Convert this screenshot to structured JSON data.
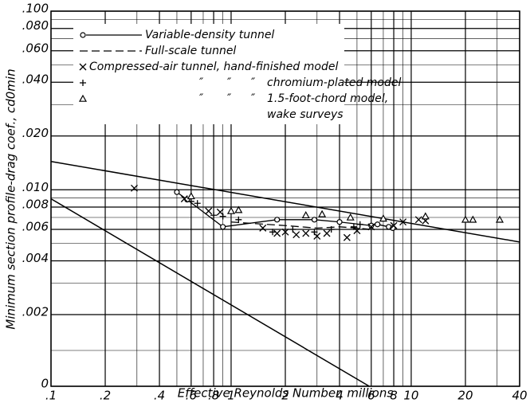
{
  "chart_data": {
    "type": "scatter",
    "x_label": "Effective Reynolds Number, millions",
    "y_label": "Minimum section profile-drag coef., cd0min",
    "xscale": "log",
    "xlim": [
      0.1,
      40
    ],
    "xticks": [
      {
        "value": 0.1,
        "label": ".1"
      },
      {
        "value": 0.2,
        "label": ".2"
      },
      {
        "value": 0.4,
        "label": ".4"
      },
      {
        "value": 0.6,
        "label": ".6"
      },
      {
        "value": 0.8,
        "label": ".8"
      },
      1,
      2,
      4,
      6,
      8,
      10,
      20,
      40
    ],
    "xminor": [
      0.3,
      0.5,
      0.7,
      0.9,
      3,
      5,
      7,
      9,
      30
    ],
    "ylim": [
      0,
      0.1
    ],
    "yticks": [
      0,
      {
        "value": 0.002,
        "label": ".002"
      },
      {
        "value": 0.004,
        "label": ".004"
      },
      {
        "value": 0.006,
        "label": ".006"
      },
      {
        "value": 0.008,
        "label": ".008"
      },
      {
        "value": 0.01,
        "label": ".010"
      },
      {
        "value": 0.02,
        "label": ".020"
      },
      {
        "value": 0.04,
        "label": ".040"
      },
      {
        "value": 0.06,
        "label": ".060"
      },
      {
        "value": 0.08,
        "label": ".080"
      },
      {
        "value": 0.1,
        "label": ".100"
      }
    ],
    "yminor": [
      0.001,
      0.003,
      0.005,
      0.007,
      0.009,
      0.03,
      0.05,
      0.07,
      0.09
    ],
    "grid": true,
    "ditto": "″",
    "series": [
      {
        "name": "Variable-density tunnel",
        "marker": "circle",
        "line": "solid",
        "color": "#000",
        "x": [
          0.5,
          0.57,
          0.9,
          1.8,
          2.9,
          4,
          6,
          6.5,
          7.5,
          7.9
        ],
        "values": [
          0.0097,
          0.0088,
          0.0062,
          0.0068,
          0.0068,
          0.0066,
          0.0063,
          0.0064,
          0.0062,
          0.0061
        ]
      },
      {
        "name": "Full-scale tunnel",
        "marker": "none",
        "line": "dashed",
        "color": "#000",
        "x": [
          1,
          2,
          3,
          4,
          5,
          6
        ],
        "values": [
          0.0066,
          0.0063,
          0.0061,
          0.0062,
          0.0061,
          0.006
        ]
      },
      {
        "name": "Compressed-air tunnel, hand-finished model",
        "marker": "x",
        "line": "none",
        "color": "#000",
        "x": [
          0.29,
          0.55,
          0.75,
          0.87,
          1.5,
          1.8,
          2,
          2.3,
          2.6,
          3,
          3.4,
          4.4,
          5,
          6,
          8,
          9,
          11,
          12
        ],
        "values": [
          0.0102,
          0.0089,
          0.0076,
          0.0075,
          0.0061,
          0.0057,
          0.0058,
          0.0056,
          0.0057,
          0.0055,
          0.0057,
          0.0054,
          0.0059,
          0.0062,
          0.0063,
          0.0066,
          0.0068,
          0.0067
        ]
      },
      {
        "name": "chromium-plated model",
        "marker": "plus",
        "line": "none",
        "color": "#000",
        "x": [
          0.6,
          0.65,
          0.8,
          0.9,
          1.1,
          1.7,
          2.2,
          2.9,
          3.6,
          4.8,
          5.2
        ],
        "values": [
          0.0086,
          0.0084,
          0.0072,
          0.0071,
          0.0068,
          0.0058,
          0.006,
          0.0058,
          0.006,
          0.0062,
          0.0064
        ]
      },
      {
        "name": "1.5-foot-chord model,",
        "marker": "triangle",
        "line": "none",
        "color": "#000",
        "x": [
          0.6,
          1.0,
          1.1,
          2.6,
          3.2,
          4.6,
          7,
          12,
          20,
          22,
          31
        ],
        "values": [
          0.0092,
          0.0076,
          0.0077,
          0.0072,
          0.0073,
          0.007,
          0.0069,
          0.0071,
          0.0068,
          0.0068,
          0.0068
        ]
      },
      {
        "name": "wake surveys",
        "marker": "none",
        "line": "none",
        "color": "#000",
        "x": [],
        "values": []
      }
    ],
    "reference_lines": [
      {
        "x": [
          0.1,
          40
        ],
        "values": [
          0.0144,
          0.0051
        ]
      },
      {
        "x": [
          0.1,
          5.85
        ],
        "values": [
          0.0089,
          0
        ]
      }
    ]
  }
}
